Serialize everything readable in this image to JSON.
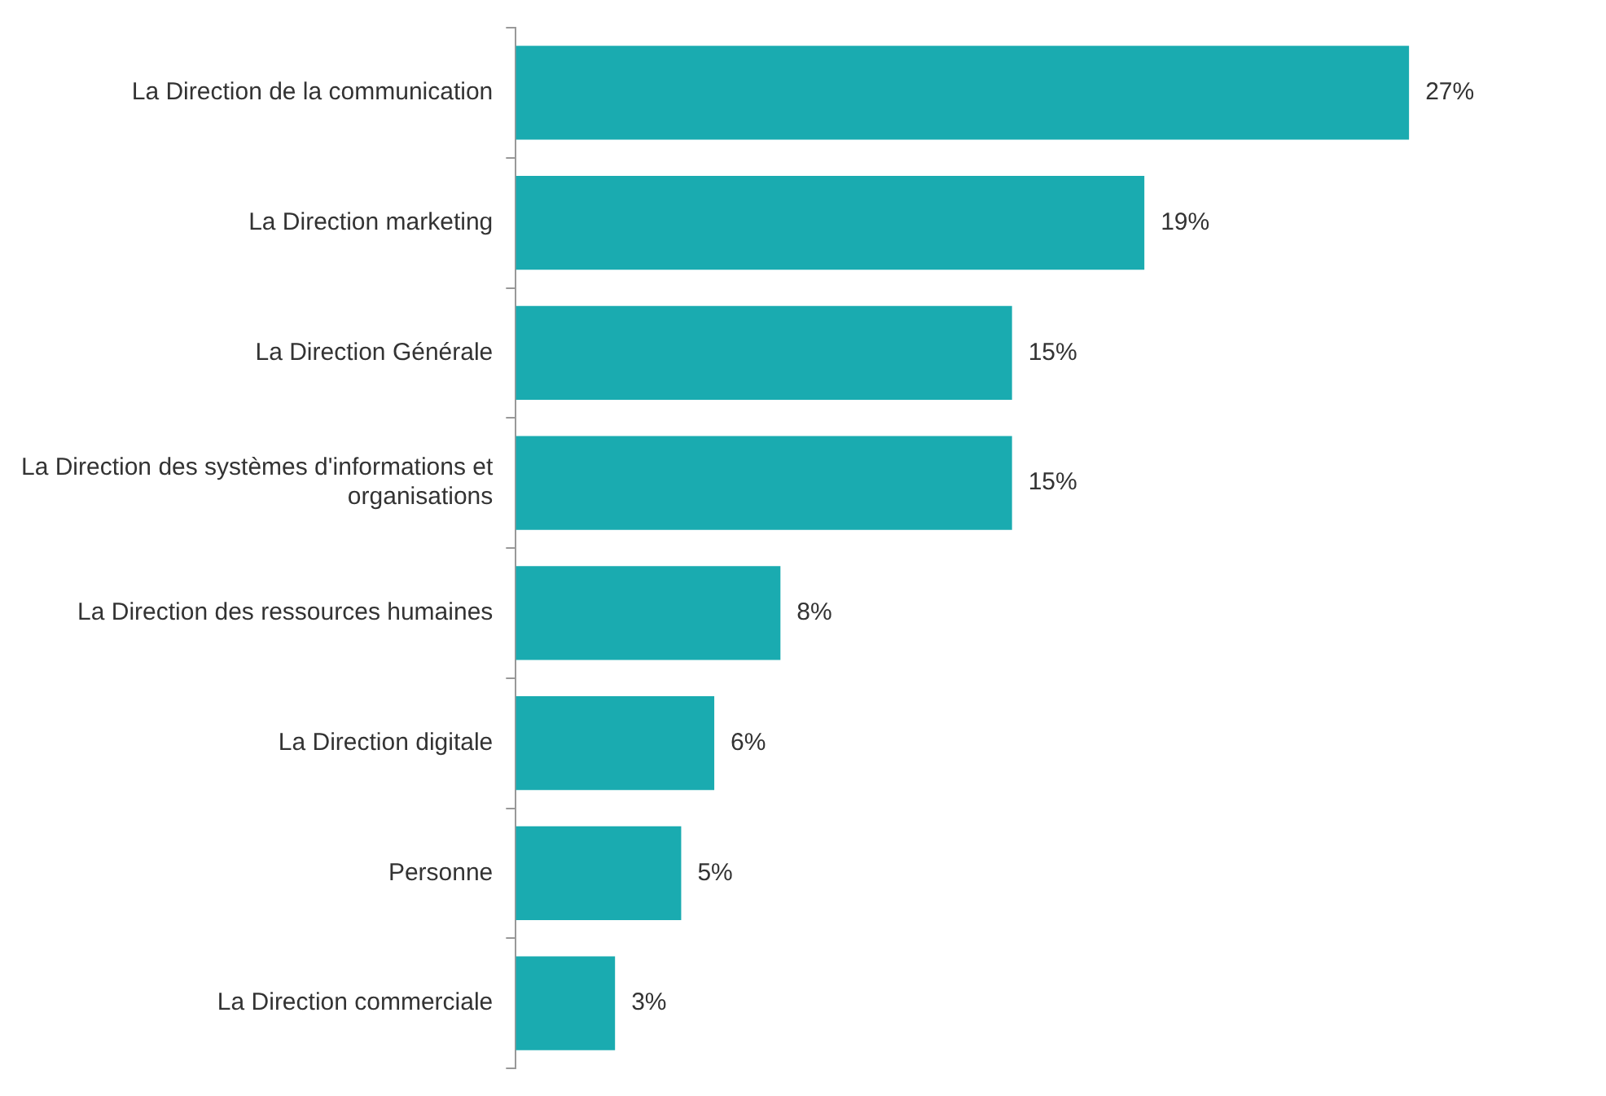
{
  "chart_data": {
    "type": "bar",
    "orientation": "horizontal",
    "categories": [
      "La Direction de la communication",
      "La Direction marketing",
      "La Direction Générale",
      "La Direction des systèmes d'informations et organisations",
      "La Direction des ressources humaines",
      "La Direction digitale",
      "Personne",
      "La Direction commerciale"
    ],
    "values": [
      27,
      19,
      15,
      15,
      8,
      6,
      5,
      3
    ],
    "value_labels": [
      "27%",
      "19%",
      "15%",
      "15%",
      "8%",
      "6%",
      "5%",
      "3%"
    ],
    "color": "#1aabb0",
    "grid": false,
    "legend": false
  }
}
